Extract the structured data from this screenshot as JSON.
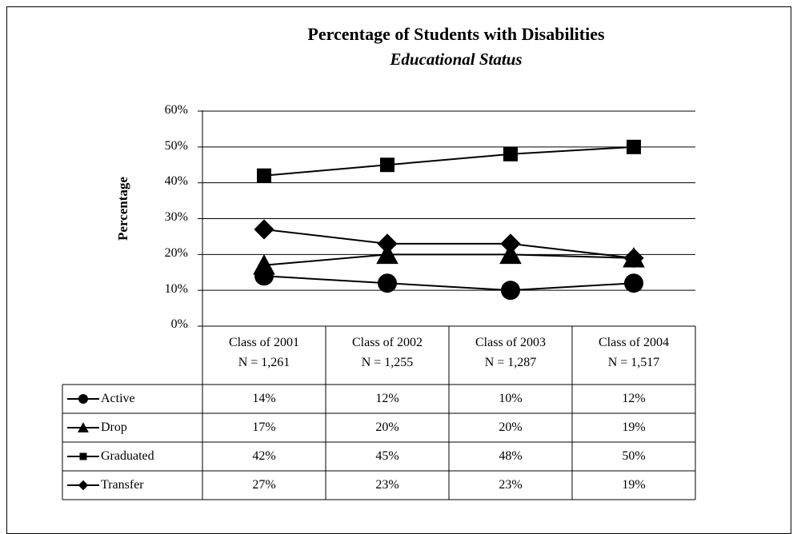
{
  "chart_data": {
    "type": "line",
    "title": "Percentage of Students with Disabilities",
    "subtitle": "Educational Status",
    "ylabel": "Percentage",
    "xlabel": "",
    "ylim": [
      0,
      60
    ],
    "yticks": [
      "0%",
      "10%",
      "20%",
      "30%",
      "40%",
      "50%",
      "60%"
    ],
    "grid": true,
    "legend": "data-table",
    "categories": [
      {
        "name": "Class of 2001",
        "n": "N = 1,261"
      },
      {
        "name": "Class of 2002",
        "n": "N = 1,255"
      },
      {
        "name": "Class of 2003",
        "n": "N = 1,287"
      },
      {
        "name": "Class of 2004",
        "n": "N = 1,517"
      }
    ],
    "series": [
      {
        "name": "Active",
        "marker": "circle",
        "values": [
          14,
          12,
          10,
          12
        ],
        "labels": [
          "14%",
          "12%",
          "10%",
          "12%"
        ]
      },
      {
        "name": "Drop",
        "marker": "triangle",
        "values": [
          17,
          20,
          20,
          19
        ],
        "labels": [
          "17%",
          "20%",
          "20%",
          "19%"
        ]
      },
      {
        "name": "Graduated",
        "marker": "square",
        "values": [
          42,
          45,
          48,
          50
        ],
        "labels": [
          "42%",
          "45%",
          "48%",
          "50%"
        ]
      },
      {
        "name": "Transfer",
        "marker": "diamond",
        "values": [
          27,
          23,
          23,
          19
        ],
        "labels": [
          "27%",
          "23%",
          "23%",
          "19%"
        ]
      }
    ],
    "colors": {
      "line": "#000000",
      "background": "#ffffff",
      "grid": "#000000"
    }
  }
}
